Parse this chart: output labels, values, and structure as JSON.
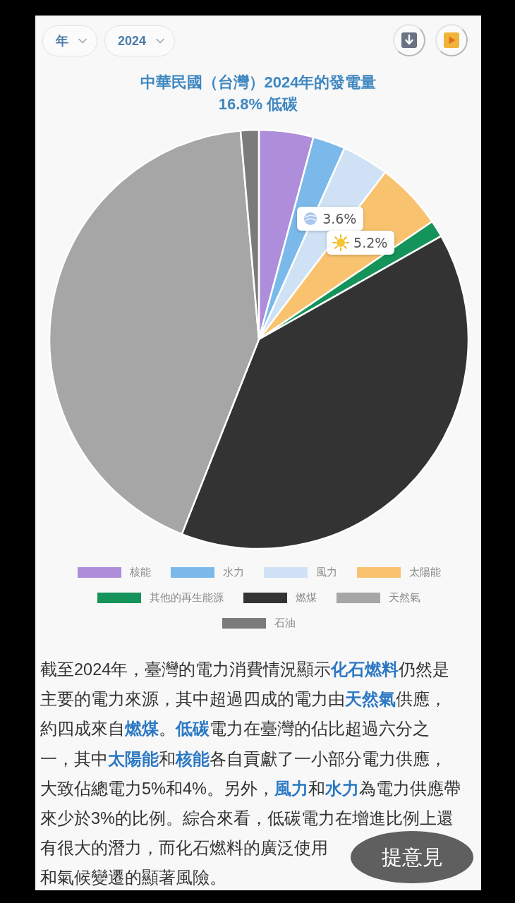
{
  "chart_data": {
    "type": "pie",
    "title": "中華民國（台灣）2024年的發電量",
    "subtitle": "16.8% 低碳",
    "categories": [
      "核能",
      "水力",
      "風力",
      "太陽能",
      "其他的再生能源",
      "燃煤",
      "天然氣",
      "石油"
    ],
    "values": [
      4.2,
      2.5,
      3.6,
      5.2,
      1.3,
      39.2,
      42.6,
      1.4
    ],
    "colors": [
      "#ae8ddb",
      "#7ab9ea",
      "#cfe2f5",
      "#f8c26e",
      "#14935a",
      "#333333",
      "#a6a6a6",
      "#7b7b7b"
    ],
    "value_labels": [
      null,
      null,
      "3.6%",
      "5.2%",
      null,
      null,
      null,
      null
    ],
    "legend": "bottom",
    "annotations": [
      "年",
      "2024",
      "截至2024年，臺灣的電力消費情況顯示**化石燃料**仍然是",
      "主要的電力來源，其中超過四成的電力由**天然氣**供應，",
      "約四成來自**燃煤**。**低碳**電力在臺灣的佔比超過六分之",
      "一，其中**太陽能**和**核能**各自貢獻了一小部分電力供應，",
      "大致佔總電力5%和4%。另外，**風力**和**水力**為電力供應帶",
      "來少於3%的比例。綜合來看，低碳電力在增進比例上還",
      "有很大的潛力，而化石燃料的廣泛使用",
      "和氣候變遷的顯著風險。",
      "提意見"
    ]
  }
}
